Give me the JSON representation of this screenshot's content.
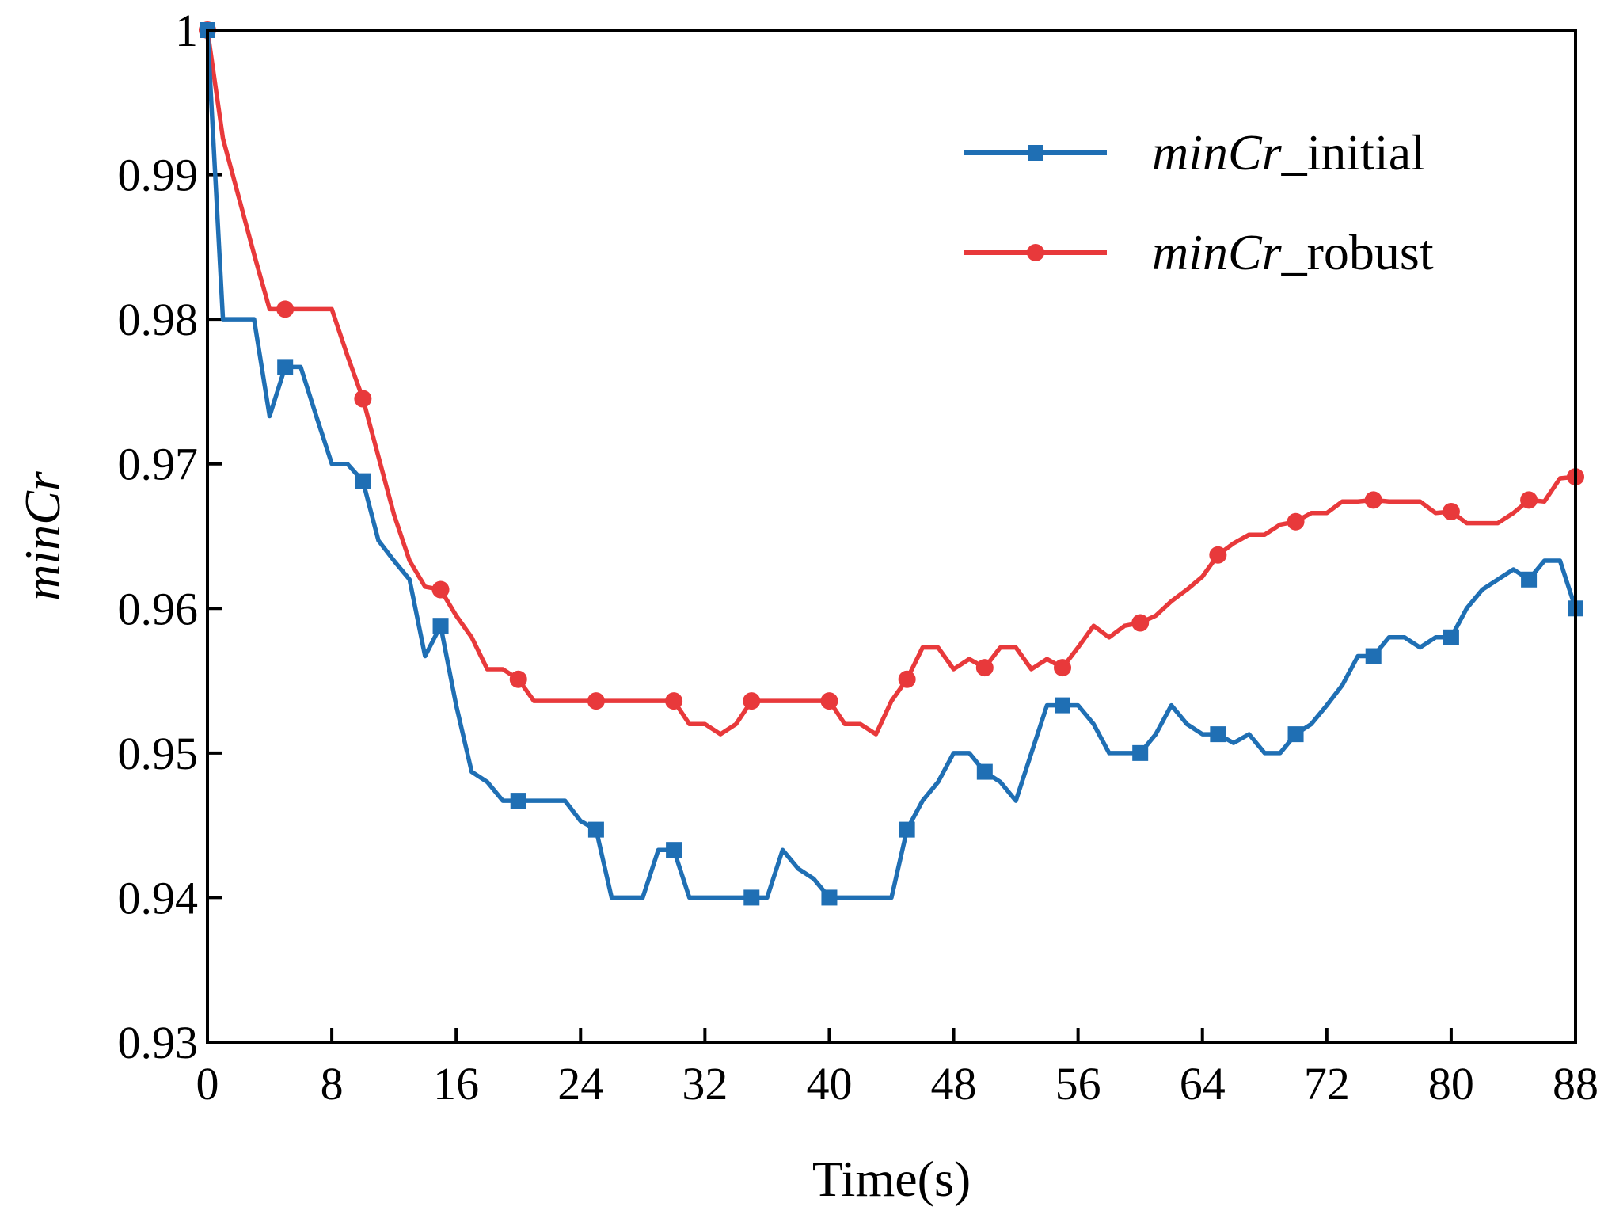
{
  "chart_data": {
    "type": "line",
    "xlabel": "Time(s)",
    "ylabel": "minCr",
    "xlim": [
      0,
      88
    ],
    "ylim": [
      0.93,
      1.0
    ],
    "xticks": [
      0,
      8,
      16,
      24,
      32,
      40,
      48,
      56,
      64,
      72,
      80,
      88
    ],
    "yticks": [
      0.93,
      0.94,
      0.95,
      0.96,
      0.97,
      0.98,
      0.99,
      1.0
    ],
    "xtick_labels": [
      "0",
      "8",
      "16",
      "24",
      "32",
      "40",
      "48",
      "56",
      "64",
      "72",
      "80",
      "88"
    ],
    "ytick_labels": [
      "0.93",
      "0.94",
      "0.95",
      "0.96",
      "0.97",
      "0.98",
      "0.99",
      "1"
    ],
    "legend_position": "top-right",
    "series": [
      {
        "name": "minCr_initial",
        "name_italic": "minCr",
        "name_suffix": "_initial",
        "color": "#1f6fb4",
        "marker": "square",
        "x": [
          0,
          1,
          2,
          3,
          4,
          5,
          6,
          7,
          8,
          9,
          10,
          11,
          12,
          13,
          14,
          15,
          16,
          17,
          18,
          19,
          20,
          21,
          22,
          23,
          24,
          25,
          26,
          27,
          28,
          29,
          30,
          31,
          32,
          33,
          34,
          35,
          36,
          37,
          38,
          39,
          40,
          41,
          42,
          43,
          44,
          45,
          46,
          47,
          48,
          49,
          50,
          51,
          52,
          53,
          54,
          55,
          56,
          57,
          58,
          59,
          60,
          61,
          62,
          63,
          64,
          65,
          66,
          67,
          68,
          69,
          70,
          71,
          72,
          73,
          74,
          75,
          76,
          77,
          78,
          79,
          80,
          81,
          82,
          83,
          84,
          85,
          86,
          87,
          88
        ],
        "y": [
          1.0,
          0.98,
          0.98,
          0.98,
          0.9733,
          0.9767,
          0.9767,
          0.9733,
          0.97,
          0.97,
          0.9688,
          0.9647,
          0.9633,
          0.962,
          0.9567,
          0.9588,
          0.9533,
          0.9487,
          0.948,
          0.9467,
          0.9467,
          0.9467,
          0.9467,
          0.9467,
          0.9453,
          0.9447,
          0.94,
          0.94,
          0.94,
          0.9433,
          0.9433,
          0.94,
          0.94,
          0.94,
          0.94,
          0.94,
          0.94,
          0.9433,
          0.942,
          0.9413,
          0.94,
          0.94,
          0.94,
          0.94,
          0.94,
          0.9447,
          0.9467,
          0.948,
          0.95,
          0.95,
          0.9487,
          0.948,
          0.9467,
          0.95,
          0.9533,
          0.9533,
          0.9533,
          0.952,
          0.95,
          0.95,
          0.95,
          0.9513,
          0.9533,
          0.952,
          0.9513,
          0.9513,
          0.9507,
          0.9513,
          0.95,
          0.95,
          0.9513,
          0.952,
          0.9533,
          0.9547,
          0.9567,
          0.9567,
          0.958,
          0.958,
          0.9573,
          0.958,
          0.958,
          0.96,
          0.9613,
          0.962,
          0.9627,
          0.962,
          0.9633,
          0.9633,
          0.96
        ],
        "marker_x": [
          0,
          5,
          10,
          15,
          20,
          25,
          30,
          35,
          40,
          45,
          50,
          55,
          60,
          65,
          70,
          75,
          80,
          85,
          88
        ]
      },
      {
        "name": "minCr_robust",
        "name_italic": "minCr",
        "name_suffix": "_robust",
        "color": "#e8393b",
        "marker": "circle",
        "x": [
          0,
          1,
          2,
          3,
          4,
          5,
          6,
          7,
          8,
          9,
          10,
          11,
          12,
          13,
          14,
          15,
          16,
          17,
          18,
          19,
          20,
          21,
          22,
          23,
          24,
          25,
          26,
          27,
          28,
          29,
          30,
          31,
          32,
          33,
          34,
          35,
          36,
          37,
          38,
          39,
          40,
          41,
          42,
          43,
          44,
          45,
          46,
          47,
          48,
          49,
          50,
          51,
          52,
          53,
          54,
          55,
          56,
          57,
          58,
          59,
          60,
          61,
          62,
          63,
          64,
          65,
          66,
          67,
          68,
          69,
          70,
          71,
          72,
          73,
          74,
          75,
          76,
          77,
          78,
          79,
          80,
          81,
          82,
          83,
          84,
          85,
          86,
          87,
          88
        ],
        "y": [
          1.0,
          0.9925,
          0.9885,
          0.9845,
          0.9807,
          0.9807,
          0.9807,
          0.9807,
          0.9807,
          0.9775,
          0.9745,
          0.9705,
          0.9665,
          0.9633,
          0.9615,
          0.9613,
          0.9595,
          0.958,
          0.9558,
          0.9558,
          0.9551,
          0.9536,
          0.9536,
          0.9536,
          0.9536,
          0.9536,
          0.9536,
          0.9536,
          0.9536,
          0.9536,
          0.9536,
          0.952,
          0.952,
          0.9513,
          0.952,
          0.9536,
          0.9536,
          0.9536,
          0.9536,
          0.9536,
          0.9536,
          0.952,
          0.952,
          0.9513,
          0.9536,
          0.9551,
          0.9573,
          0.9573,
          0.9558,
          0.9565,
          0.9559,
          0.9573,
          0.9573,
          0.9558,
          0.9565,
          0.9559,
          0.9573,
          0.9588,
          0.958,
          0.9588,
          0.959,
          0.9595,
          0.9605,
          0.9613,
          0.9622,
          0.9637,
          0.9645,
          0.9651,
          0.9651,
          0.9658,
          0.966,
          0.9666,
          0.9666,
          0.9674,
          0.9674,
          0.9675,
          0.9674,
          0.9674,
          0.9674,
          0.9666,
          0.9667,
          0.9659,
          0.9659,
          0.9659,
          0.9666,
          0.9675,
          0.9674,
          0.969,
          0.9691
        ],
        "marker_x": [
          0,
          5,
          10,
          15,
          20,
          25,
          30,
          35,
          40,
          45,
          50,
          55,
          60,
          65,
          70,
          75,
          80,
          85,
          88
        ]
      }
    ]
  }
}
